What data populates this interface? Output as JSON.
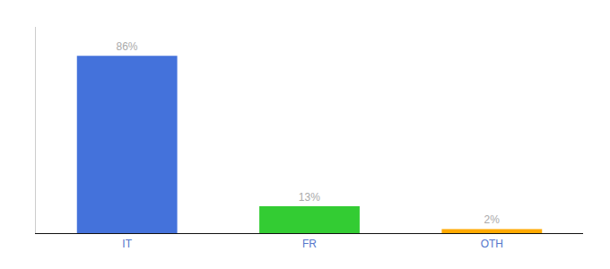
{
  "chart_data": {
    "type": "bar",
    "categories": [
      "IT",
      "FR",
      "OTH"
    ],
    "values": [
      86,
      13,
      2
    ],
    "value_labels": [
      "86%",
      "13%",
      "2%"
    ],
    "colors": [
      "#4472db",
      "#33cc33",
      "#ffaa00"
    ],
    "data_labels": true,
    "ylim": [
      0,
      100
    ],
    "tick_labels": "x",
    "grid": false
  }
}
